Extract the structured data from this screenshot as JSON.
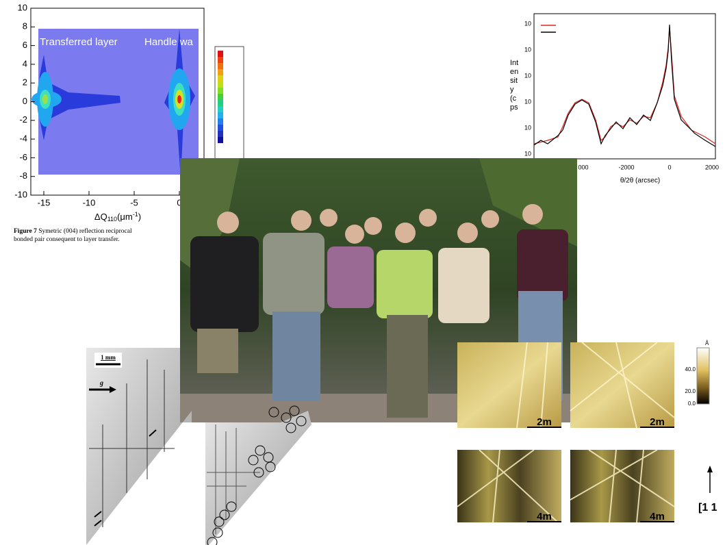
{
  "contour_plot": {
    "annotations": [
      "Transferred layer",
      "Handle wa"
    ],
    "x_label": [
      "ΔQ",
      "110",
      "(μm",
      "-1",
      ")"
    ],
    "xticks": [
      -15,
      -10,
      -5,
      0
    ],
    "yticks": [
      10,
      8,
      6,
      4,
      2,
      0,
      -2,
      -4,
      -6,
      -8,
      -10
    ]
  },
  "caption": {
    "label": "Figure 7",
    "lines": [
      "Symetric (004) reflection reciprocal",
      "bonded pair consequent to layer transfer."
    ]
  },
  "xrd_plot": {
    "y_label": [
      "Int",
      "en",
      "sit",
      "y",
      "(c",
      "ps"
    ],
    "yticks": [
      "10",
      "10",
      "10",
      "10",
      "10",
      "10"
    ],
    "xticks": [
      "000",
      "-2000",
      "0",
      "2000"
    ],
    "x_label": "θ/2θ (arcsec)"
  },
  "topography": {
    "scale": "1 mm",
    "vector": "g"
  },
  "afm": {
    "scales": [
      "2m",
      "2m",
      "4m",
      "4m"
    ],
    "unit": "Å",
    "colorbar": [
      "40.0",
      "20.0",
      "0.0"
    ],
    "direction": "[1 1"
  }
}
